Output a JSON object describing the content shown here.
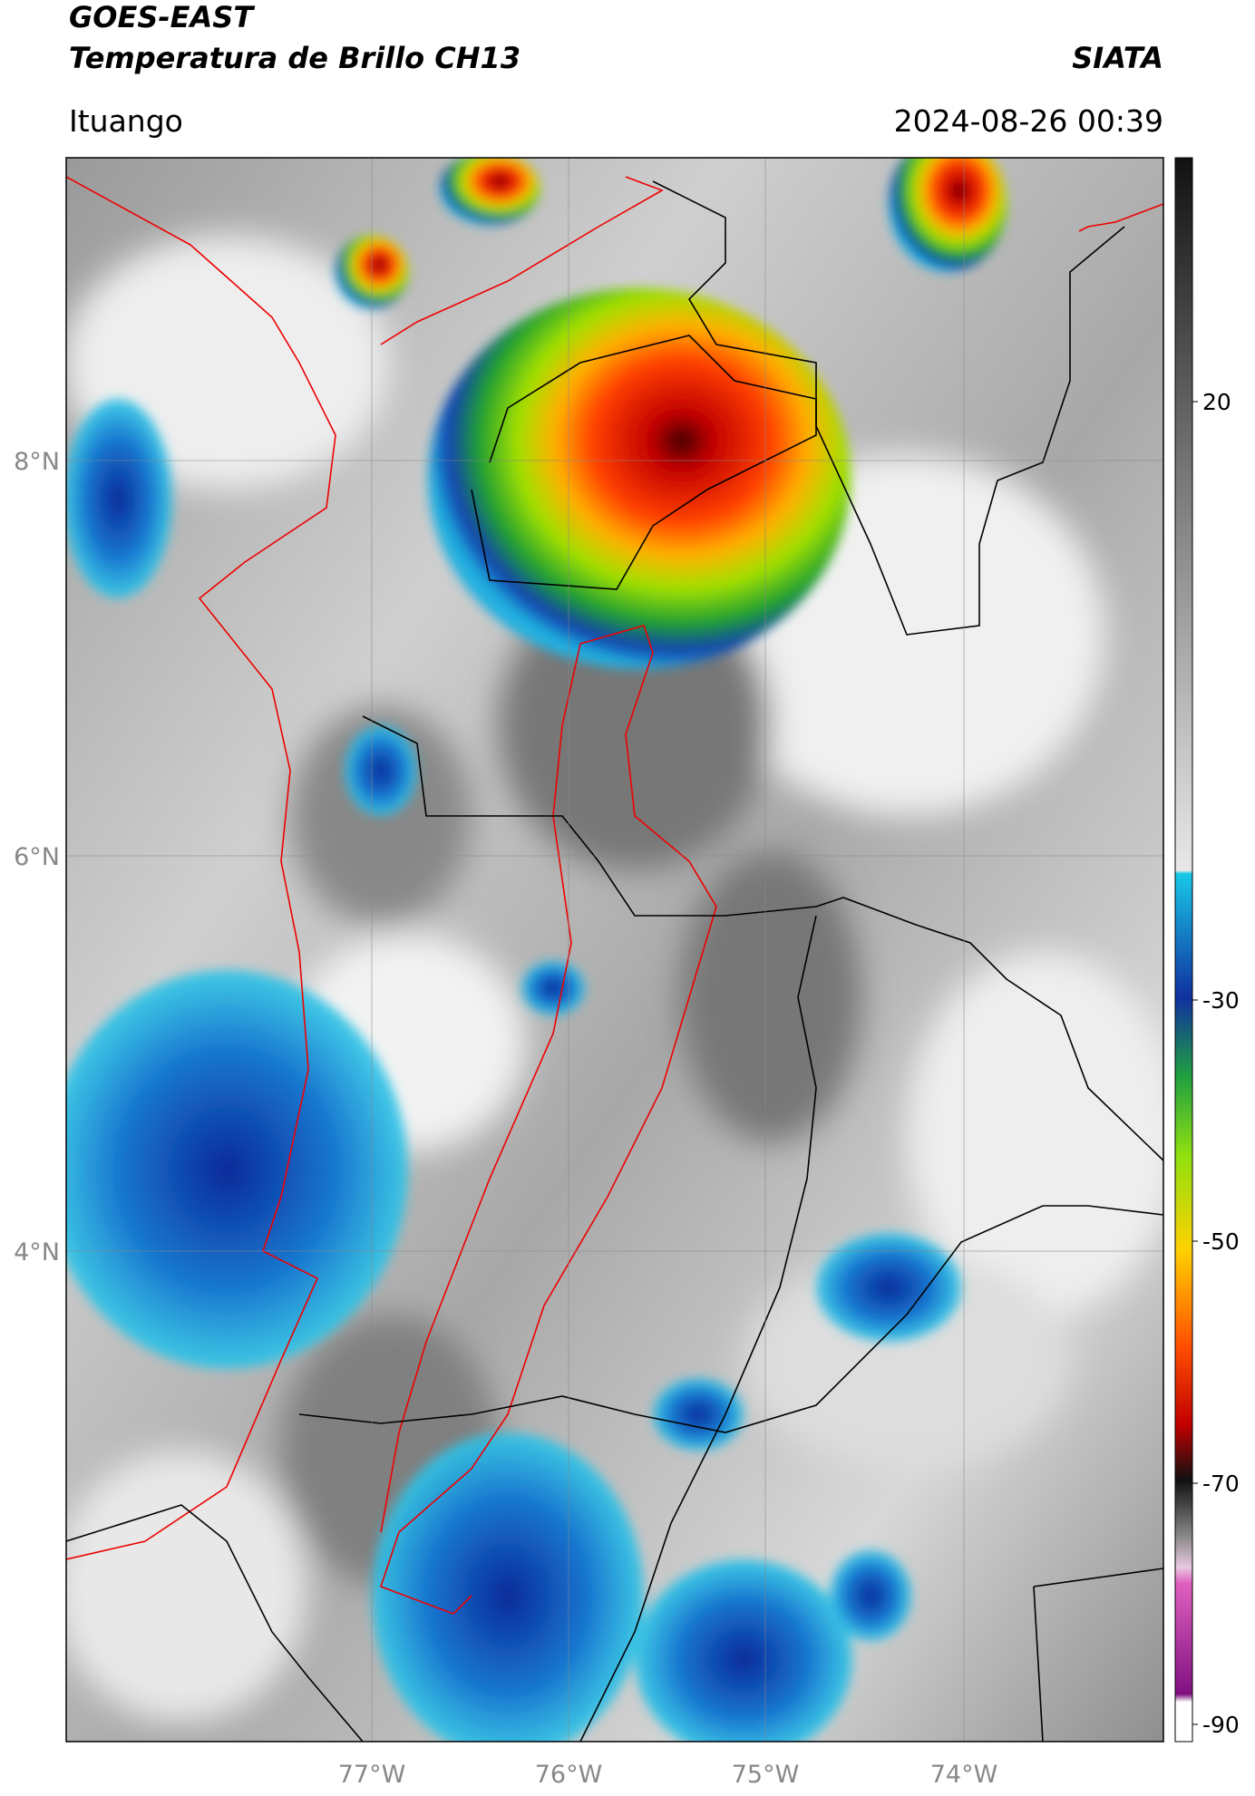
{
  "header": {
    "title": "GOES-EAST",
    "subtitle": "Temperatura de Brillo CH13",
    "agency": "SIATA",
    "location": "Ituango",
    "timestamp": "2024-08-26 00:39"
  },
  "map": {
    "lat_labels": [
      "8°N",
      "6°N",
      "4°N"
    ],
    "lon_labels": [
      "77°W",
      "76°W",
      "75°W",
      "74°W"
    ]
  },
  "colorbar": {
    "labels": [
      "20",
      "-30",
      "-50",
      "-70",
      "-90"
    ]
  }
}
